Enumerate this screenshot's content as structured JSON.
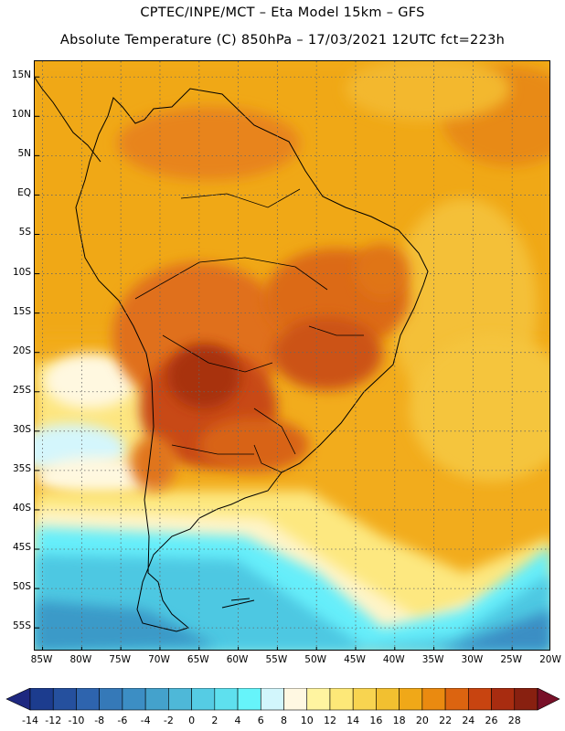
{
  "header": {
    "title_line1": "CPTEC/INPE/MCT –  Eta Model 15km – GFS",
    "title_line2": "Absolute Temperature (C) 850hPa – 17/03/2021 12UTC fct=223h"
  },
  "map": {
    "lat_labels": [
      "15N",
      "10N",
      "5N",
      "EQ",
      "5S",
      "10S",
      "15S",
      "20S",
      "25S",
      "30S",
      "35S",
      "40S",
      "45S",
      "50S",
      "55S"
    ],
    "lat_values": [
      15,
      10,
      5,
      0,
      -5,
      -10,
      -15,
      -20,
      -25,
      -30,
      -35,
      -40,
      -45,
      -50,
      -55
    ],
    "lon_labels": [
      "85W",
      "80W",
      "75W",
      "70W",
      "65W",
      "60W",
      "55W",
      "50W",
      "45W",
      "40W",
      "35W",
      "30W",
      "25W",
      "20W"
    ],
    "lon_values": [
      -85,
      -80,
      -75,
      -70,
      -65,
      -60,
      -55,
      -50,
      -45,
      -40,
      -35,
      -30,
      -25,
      -20
    ],
    "lat_range": [
      -58,
      17
    ],
    "lon_range": [
      -86,
      -20
    ],
    "grid": "dotted"
  },
  "colorbar": {
    "labels": [
      "-14",
      "-12",
      "-10",
      "-8",
      "-6",
      "-4",
      "-2",
      "0",
      "2",
      "4",
      "6",
      "8",
      "10",
      "12",
      "14",
      "16",
      "18",
      "20",
      "22",
      "24",
      "26",
      "28"
    ],
    "colors": [
      "#1c3c8e",
      "#25509e",
      "#2e64ae",
      "#3579b8",
      "#3c8ec4",
      "#44a2cc",
      "#4eb8d8",
      "#55cce4",
      "#5ee0ee",
      "#66f4fa",
      "#d2f6fc",
      "#fff8e2",
      "#fff4a0",
      "#fde878",
      "#f8d450",
      "#f2c030",
      "#f0a818",
      "#ea8a10",
      "#dc6410",
      "#c84410",
      "#a82c10",
      "#882010"
    ],
    "extend_min_color": "#1e2880",
    "extend_max_color": "#781028"
  }
}
